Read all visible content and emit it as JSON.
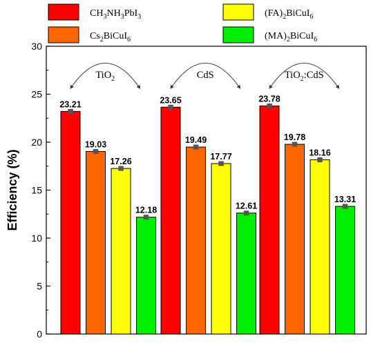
{
  "chart_data": {
    "type": "bar",
    "categories": [
      "TiO2",
      "CdS",
      "TiO2:CdS"
    ],
    "category_labels": [
      {
        "base": "TiO",
        "sub": "2",
        "rest": ""
      },
      {
        "base": "CdS",
        "sub": "",
        "rest": ""
      },
      {
        "base": "TiO",
        "sub": "2",
        "rest": ":CdS"
      }
    ],
    "series": [
      {
        "name": "CH3NH3PbI3",
        "color": "#ff0000",
        "values": [
          23.21,
          23.65,
          23.78
        ],
        "legend_parts": [
          [
            "CH",
            ""
          ],
          [
            "3",
            "sub"
          ],
          [
            "NH",
            ""
          ],
          [
            "3",
            "sub"
          ],
          [
            "PbI",
            ""
          ],
          [
            "3",
            "sub"
          ]
        ]
      },
      {
        "name": "Cs2BiCuI6",
        "color": "#ff6600",
        "values": [
          19.03,
          19.49,
          19.78
        ],
        "legend_parts": [
          [
            "Cs",
            ""
          ],
          [
            "2",
            "sub"
          ],
          [
            "BiCuI",
            ""
          ],
          [
            "6",
            "sub"
          ]
        ]
      },
      {
        "name": "(FA)2BiCuI6",
        "color": "#ffff00",
        "values": [
          17.26,
          17.77,
          18.16
        ],
        "legend_parts": [
          [
            "(FA)",
            ""
          ],
          [
            "2",
            "sub"
          ],
          [
            "BiCuI",
            ""
          ],
          [
            "6",
            "sub"
          ]
        ]
      },
      {
        "name": "(MA)2BiCuI6",
        "color": "#00ee00",
        "values": [
          12.18,
          12.61,
          13.31
        ],
        "legend_parts": [
          [
            "(MA)",
            ""
          ],
          [
            "2",
            "sub"
          ],
          [
            "BiCuI",
            ""
          ],
          [
            "6",
            "sub"
          ]
        ]
      }
    ],
    "data_labels": [
      [
        "23.21",
        "23.65",
        "23.78"
      ],
      [
        "19.03",
        "19.49",
        "19.78"
      ],
      [
        "17.26",
        "17.77",
        "18.16"
      ],
      [
        "12.18",
        "12.61",
        "13.31"
      ]
    ],
    "ylabel": "Efficiency (%)",
    "xlabel": "",
    "ylim": [
      0,
      30
    ],
    "yticks": [
      "0",
      "5",
      "10",
      "15",
      "20",
      "25",
      "30"
    ],
    "ytick_values": [
      0,
      5,
      10,
      15,
      20,
      25,
      30
    ],
    "grid": false,
    "legend_placement": "top",
    "error_bars": true
  }
}
